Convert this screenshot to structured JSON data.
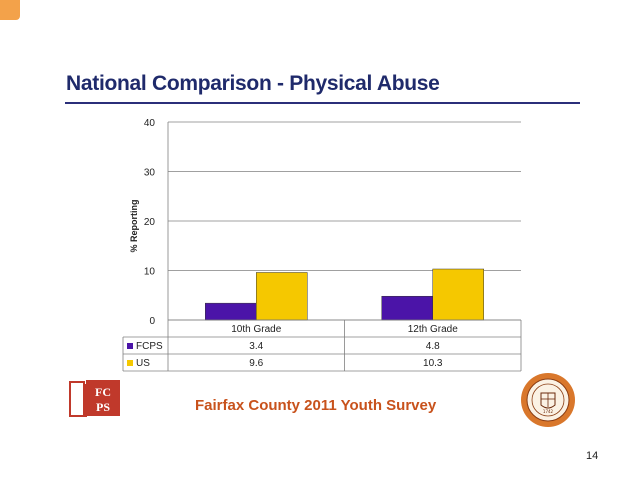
{
  "slide": {
    "title": "National Comparison - Physical Abuse",
    "footer": "Fairfax County 2011 Youth Survey",
    "page_number": "14"
  },
  "logos": {
    "left_text": "FCPS",
    "right_text": "1742"
  },
  "colors": {
    "title": "#1f2a6b",
    "footer": "#c8521c",
    "fcps": "#4b14a8",
    "us": "#f5c800"
  },
  "chart_data": {
    "type": "bar",
    "categories": [
      "10th Grade",
      "12th Grade"
    ],
    "series": [
      {
        "name": "FCPS",
        "values": [
          3.4,
          4.8
        ],
        "labels": [
          "3.4",
          "4.8"
        ],
        "color": "#4b14a8"
      },
      {
        "name": "US",
        "values": [
          9.6,
          10.3
        ],
        "labels": [
          "9.6",
          "10.3"
        ],
        "color": "#f5c800"
      }
    ],
    "ylabel": "% Reporting",
    "ylim": [
      0,
      40
    ],
    "yticks": [
      0,
      10,
      20,
      30,
      40
    ],
    "grid": true,
    "legend": "data-table"
  }
}
